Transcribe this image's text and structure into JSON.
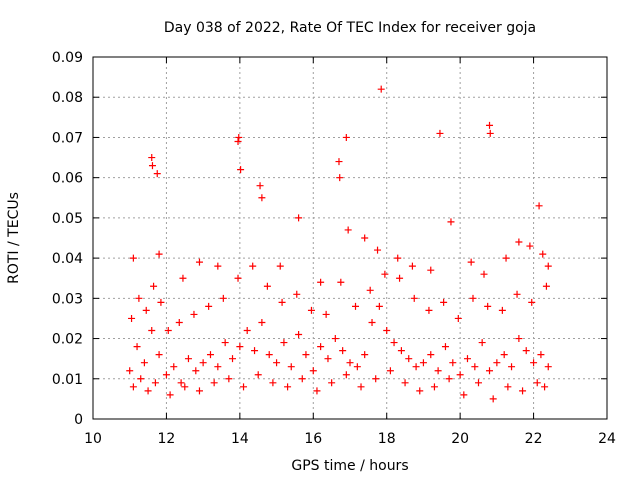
{
  "chart_data": {
    "type": "scatter",
    "title": "Day 038 of 2022, Rate Of TEC Index for receiver goja",
    "xlabel": "GPS time / hours",
    "ylabel": "ROTI / TECUs",
    "xlim": [
      10,
      24
    ],
    "ylim": [
      0,
      0.09
    ],
    "xticks": [
      "10",
      "12",
      "14",
      "16",
      "18",
      "20",
      "22",
      "24"
    ],
    "yticks": [
      "0",
      "0.01",
      "0.02",
      "0.03",
      "0.04",
      "0.05",
      "0.06",
      "0.07",
      "0.08",
      "0.09"
    ],
    "grid": true,
    "marker": "+",
    "color": "#ff0000",
    "legend": "none",
    "series": [
      {
        "x": [
          11.0,
          11.2,
          11.4,
          11.6,
          11.8,
          12.0,
          12.2,
          12.4,
          12.6,
          12.8,
          13.0,
          13.2,
          13.4,
          13.6,
          13.8,
          14.0,
          14.2,
          14.4,
          14.6,
          14.8,
          15.0,
          15.2,
          15.4,
          15.6,
          15.8,
          16.0,
          16.2,
          16.4,
          16.6,
          16.8,
          17.0,
          17.2,
          17.4,
          17.6,
          17.8,
          18.0,
          18.2,
          18.4,
          18.6,
          18.8,
          19.0,
          19.2,
          19.4,
          19.6,
          19.8,
          20.0,
          20.2,
          20.4,
          20.6,
          20.8,
          21.0,
          21.2,
          21.4,
          21.6,
          21.8,
          22.0,
          22.2,
          22.4,
          11.1,
          11.3,
          11.5,
          11.7,
          12.1,
          12.5,
          12.9,
          13.3,
          13.7,
          14.1,
          14.5,
          14.9,
          15.3,
          15.7,
          16.1,
          16.5,
          16.9,
          17.3,
          17.7,
          18.1,
          18.5,
          18.9,
          19.3,
          19.7,
          20.1,
          20.5,
          20.9,
          21.3,
          21.7,
          22.1,
          22.3,
          11.05,
          11.25,
          11.45,
          11.65,
          11.85,
          12.05,
          12.35,
          12.75,
          13.15,
          13.55,
          13.95,
          14.35,
          14.75,
          15.15,
          15.55,
          15.95,
          16.35,
          16.75,
          17.15,
          17.55,
          17.95,
          18.35,
          18.75,
          19.15,
          19.55,
          19.95,
          20.35,
          20.75,
          21.15,
          21.55,
          21.95,
          22.35,
          11.6,
          11.62,
          11.75,
          13.95,
          13.97,
          14.02,
          14.55,
          16.7,
          16.72,
          16.9,
          17.85,
          19.45,
          20.8,
          20.82,
          22.15,
          11.1,
          11.8,
          12.45,
          12.9,
          13.4,
          14.6,
          15.1,
          15.6,
          16.2,
          16.95,
          17.4,
          17.75,
          18.3,
          18.7,
          19.2,
          19.75,
          20.3,
          20.65,
          21.25,
          21.6,
          21.9,
          22.25,
          22.4
        ],
        "y": [
          0.012,
          0.018,
          0.014,
          0.022,
          0.016,
          0.011,
          0.013,
          0.009,
          0.015,
          0.012,
          0.014,
          0.016,
          0.013,
          0.019,
          0.015,
          0.018,
          0.022,
          0.017,
          0.024,
          0.016,
          0.014,
          0.019,
          0.013,
          0.021,
          0.016,
          0.012,
          0.018,
          0.015,
          0.02,
          0.017,
          0.014,
          0.013,
          0.016,
          0.024,
          0.028,
          0.022,
          0.019,
          0.017,
          0.015,
          0.013,
          0.014,
          0.016,
          0.012,
          0.018,
          0.014,
          0.011,
          0.015,
          0.013,
          0.019,
          0.012,
          0.014,
          0.016,
          0.013,
          0.02,
          0.017,
          0.014,
          0.016,
          0.013,
          0.008,
          0.01,
          0.007,
          0.009,
          0.006,
          0.008,
          0.007,
          0.009,
          0.01,
          0.008,
          0.011,
          0.009,
          0.008,
          0.01,
          0.007,
          0.009,
          0.011,
          0.008,
          0.01,
          0.012,
          0.009,
          0.007,
          0.008,
          0.01,
          0.006,
          0.009,
          0.005,
          0.008,
          0.007,
          0.009,
          0.008,
          0.025,
          0.03,
          0.027,
          0.033,
          0.029,
          0.022,
          0.024,
          0.026,
          0.028,
          0.03,
          0.035,
          0.038,
          0.033,
          0.029,
          0.031,
          0.027,
          0.026,
          0.034,
          0.028,
          0.032,
          0.036,
          0.035,
          0.03,
          0.027,
          0.029,
          0.025,
          0.03,
          0.028,
          0.027,
          0.031,
          0.029,
          0.033,
          0.065,
          0.063,
          0.061,
          0.069,
          0.07,
          0.062,
          0.058,
          0.064,
          0.06,
          0.07,
          0.082,
          0.071,
          0.073,
          0.071,
          0.053,
          0.04,
          0.041,
          0.035,
          0.039,
          0.038,
          0.055,
          0.038,
          0.05,
          0.034,
          0.047,
          0.045,
          0.042,
          0.04,
          0.038,
          0.037,
          0.049,
          0.039,
          0.036,
          0.04,
          0.044,
          0.043,
          0.041,
          0.038
        ]
      }
    ]
  }
}
